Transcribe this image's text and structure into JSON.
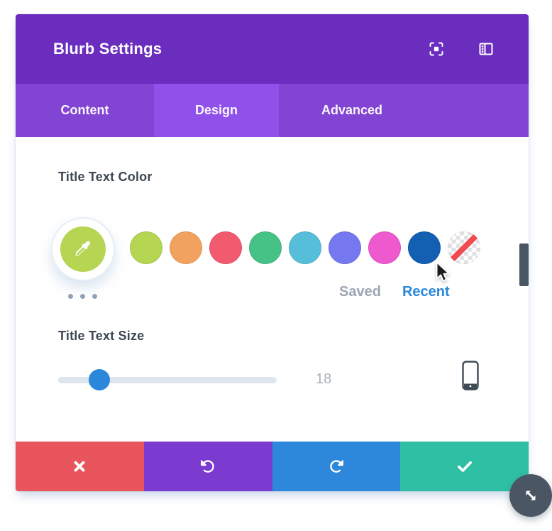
{
  "modal": {
    "title": "Blurb Settings",
    "header_icons": [
      {
        "name": "expand-modal-icon"
      },
      {
        "name": "panel-layout-icon"
      }
    ],
    "tabs": [
      {
        "label": "Content",
        "active": false
      },
      {
        "label": "Design",
        "active": true
      },
      {
        "label": "Advanced",
        "active": false
      }
    ]
  },
  "color_section": {
    "label": "Title Text Color",
    "swatches": [
      "#B5D553",
      "#F2A25F",
      "#F25A70",
      "#47C287",
      "#56BED8",
      "#7678F0",
      "#EE59CE",
      "#135FB2"
    ],
    "transparent_swatch": {
      "line_color": "#F04B50"
    },
    "saved_label": "Saved",
    "recent_label": "Recent"
  },
  "size_section": {
    "label": "Title Text Size",
    "value": "18"
  },
  "footer_buttons": [
    {
      "name": "cancel",
      "icon": "x-icon",
      "color": "#E8555C"
    },
    {
      "name": "undo",
      "icon": "undo-icon",
      "color": "#7C3BD0"
    },
    {
      "name": "redo",
      "icon": "redo-icon",
      "color": "#2D87DA"
    },
    {
      "name": "save",
      "icon": "check-icon",
      "color": "#2EBFA5"
    }
  ],
  "theme": {
    "header_bg": "#6B2DBE",
    "tabbar_bg": "#8244D2",
    "active_tab_bg": "#8F51E9",
    "eyedropper_bg": "#B5D553",
    "recent_link_color": "#2B87DA",
    "slider_handle_color": "#2B87DA",
    "scrollbar_color": "#4A5664",
    "resize_button_color": "#4A5663"
  }
}
